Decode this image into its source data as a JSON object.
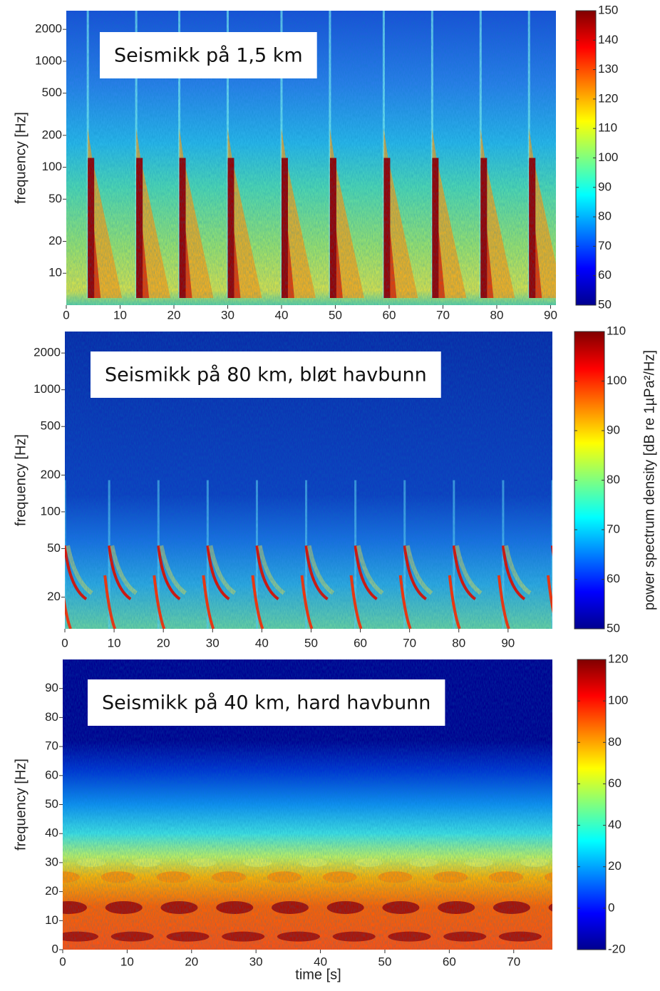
{
  "chart_data": [
    {
      "type": "spectrogram",
      "annotation": "Seismikk på 1,5 km",
      "ylabel": "frequency [Hz]",
      "yscale": "log",
      "xlim": [
        0,
        91
      ],
      "xticks": [
        0,
        10,
        20,
        30,
        40,
        50,
        60,
        70,
        80,
        90
      ],
      "ylim": [
        5,
        3000
      ],
      "yticks": [
        10,
        20,
        50,
        100,
        200,
        500,
        1000,
        2000
      ],
      "colormap": "jet",
      "clim": [
        50,
        150
      ],
      "cticks": [
        50,
        60,
        70,
        80,
        90,
        100,
        110,
        120,
        130,
        140,
        150
      ]
    },
    {
      "type": "spectrogram",
      "annotation": "Seismikk på 80 km, bløt havbunn",
      "ylabel": "frequency [Hz]",
      "yscale": "log",
      "xlim": [
        0,
        99
      ],
      "xticks": [
        0,
        10,
        20,
        30,
        40,
        50,
        60,
        70,
        80,
        90
      ],
      "ylim": [
        11,
        3000
      ],
      "yticks": [
        20,
        50,
        100,
        200,
        500,
        1000,
        2000
      ],
      "colormap": "jet",
      "clim": [
        50,
        110
      ],
      "cticks": [
        50,
        60,
        70,
        80,
        90,
        100,
        110
      ],
      "colorbar_label": "power spectrum density [dB re 1µPa²/Hz]"
    },
    {
      "type": "spectrogram",
      "annotation": "Seismikk på 40 km, hard havbunn",
      "ylabel": "frequency [Hz]",
      "xlabel": "time [s]",
      "yscale": "linear",
      "xlim": [
        0,
        76
      ],
      "xticks": [
        0,
        10,
        20,
        30,
        40,
        50,
        60,
        70
      ],
      "ylim": [
        0,
        100
      ],
      "yticks": [
        0,
        10,
        20,
        30,
        40,
        50,
        60,
        70,
        80,
        90
      ],
      "colormap": "jet",
      "clim": [
        -20,
        120
      ],
      "cticks": [
        -20,
        0,
        20,
        40,
        60,
        80,
        100,
        120
      ]
    }
  ]
}
